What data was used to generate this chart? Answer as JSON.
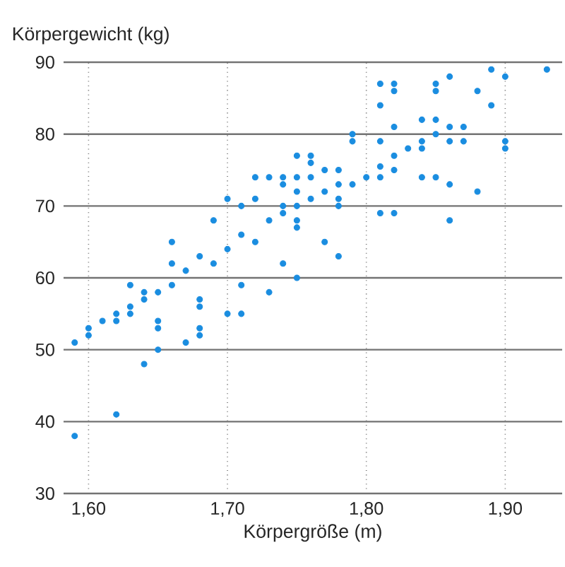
{
  "chart_data": {
    "type": "scatter",
    "xlabel": "Körpergröße (m)",
    "ylabel": "Körpergewicht (kg)",
    "xlim": [
      1.582,
      1.941
    ],
    "ylim": [
      30,
      90
    ],
    "xticks": [
      {
        "value": 1.6,
        "label": "1,60"
      },
      {
        "value": 1.7,
        "label": "1,70"
      },
      {
        "value": 1.8,
        "label": "1,80"
      },
      {
        "value": 1.9,
        "label": "1,90"
      }
    ],
    "yticks": [
      30,
      40,
      50,
      60,
      70,
      80,
      90
    ],
    "grid": true,
    "marker": "circle",
    "color": "#1a8de0",
    "x": [
      1.7,
      1.69,
      1.66,
      1.66,
      1.68,
      1.67,
      1.69,
      1.7,
      1.63,
      1.64,
      1.65,
      1.66,
      1.64,
      1.63,
      1.62,
      1.63,
      1.61,
      1.62,
      1.6,
      1.6,
      1.59,
      1.65,
      1.65,
      1.65,
      1.64,
      1.62,
      1.59,
      1.68,
      1.68,
      1.68,
      1.68,
      1.67,
      1.7,
      1.71,
      1.72,
      1.73,
      1.74,
      1.74,
      1.75,
      1.75,
      1.76,
      1.76,
      1.76,
      1.77,
      1.78,
      1.78,
      1.79,
      1.79,
      1.79,
      1.72,
      1.75,
      1.74,
      1.75,
      1.76,
      1.77,
      1.78,
      1.78,
      1.74,
      1.73,
      1.75,
      1.75,
      1.71,
      1.72,
      1.77,
      1.78,
      1.74,
      1.71,
      1.75,
      1.73,
      1.71,
      1.8,
      1.81,
      1.81,
      1.82,
      1.82,
      1.83,
      1.81,
      1.82,
      1.81,
      1.81,
      1.82,
      1.82,
      1.81,
      1.82,
      1.85,
      1.85,
      1.86,
      1.89,
      1.9,
      1.93,
      1.88,
      1.89,
      1.84,
      1.85,
      1.86,
      1.87,
      1.85,
      1.84,
      1.86,
      1.87,
      1.9,
      1.9,
      1.84,
      1.84,
      1.85,
      1.86,
      1.88,
      1.86
    ],
    "values": [
      71,
      68,
      65,
      62,
      63,
      61,
      62,
      64,
      59,
      58,
      58,
      59,
      57,
      56,
      55,
      55,
      54,
      54,
      53,
      52,
      51,
      54,
      53,
      50,
      48,
      41,
      38,
      57,
      56,
      53,
      52,
      51,
      55,
      70,
      74,
      74,
      74,
      73,
      74,
      77,
      77,
      76,
      74,
      75,
      75,
      73,
      73,
      80,
      79,
      71,
      72,
      70,
      70,
      71,
      72,
      71,
      70,
      69,
      68,
      68,
      67,
      66,
      65,
      65,
      63,
      62,
      59,
      60,
      58,
      55,
      74,
      75.5,
      74,
      75,
      77,
      78,
      79,
      81,
      84,
      87,
      87,
      86,
      69,
      69,
      87,
      86,
      88,
      89,
      88,
      89,
      86,
      84,
      82,
      82,
      81,
      81,
      80,
      79,
      79,
      79,
      79,
      78,
      78,
      74,
      74,
      73,
      72,
      68
    ]
  }
}
